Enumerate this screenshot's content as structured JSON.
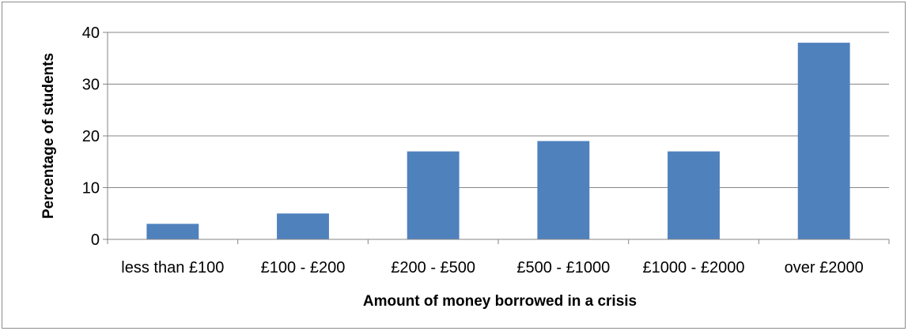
{
  "chart_data": {
    "type": "bar",
    "title": "",
    "xlabel": "Amount of money borrowed in a crisis",
    "ylabel": "Percentage of students",
    "categories": [
      "less than £100",
      "£100 - £200",
      "£200 - £500",
      "£500 - £1000",
      "£1000 - £2000",
      "over £2000"
    ],
    "values": [
      3,
      5,
      17,
      19,
      17,
      38
    ],
    "ylim": [
      0,
      40
    ],
    "yticks": [
      0,
      10,
      20,
      30,
      40
    ],
    "grid": true,
    "legend": "none",
    "bar_color": "#4f81bd",
    "grid_color": "#868686"
  }
}
